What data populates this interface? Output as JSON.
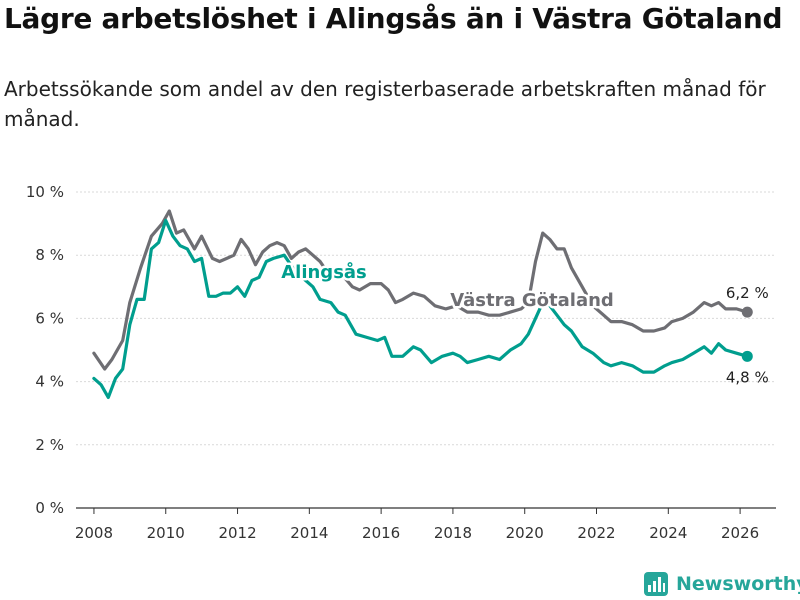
{
  "title": "Lägre arbetslöshet i Alingsås än i Västra Götaland",
  "subtitle": "Arbetssökande som andel av den registerbaserade arbetskraften månad för månad.",
  "brand": "Newsworthy",
  "chart_data": {
    "type": "line",
    "x_range": [
      2007.5,
      2027.0
    ],
    "ylim": [
      0,
      10
    ],
    "y_ticks": [
      0,
      2,
      4,
      6,
      8,
      10
    ],
    "y_tick_labels": [
      "0 %",
      "2 %",
      "4 %",
      "6 %",
      "8 %",
      "10 %"
    ],
    "x_ticks": [
      2008,
      2010,
      2012,
      2014,
      2016,
      2018,
      2020,
      2022,
      2024,
      2026
    ],
    "x_tick_labels": [
      "2008",
      "2010",
      "2012",
      "2014",
      "2016",
      "2018",
      "2020",
      "2022",
      "2024",
      "2026"
    ],
    "grid": "horizontal",
    "series": [
      {
        "name": "Västra Götaland",
        "color": "#6e6e73",
        "label_text": "Västra Götaland",
        "end_label": "6,2 %",
        "end_value": 6.2,
        "end_x": 2026.2,
        "points": [
          [
            2008.0,
            4.9
          ],
          [
            2008.3,
            4.4
          ],
          [
            2008.5,
            4.7
          ],
          [
            2008.8,
            5.3
          ],
          [
            2009.0,
            6.5
          ],
          [
            2009.3,
            7.6
          ],
          [
            2009.6,
            8.6
          ],
          [
            2009.9,
            9.0
          ],
          [
            2010.1,
            9.4
          ],
          [
            2010.3,
            8.7
          ],
          [
            2010.5,
            8.8
          ],
          [
            2010.8,
            8.2
          ],
          [
            2011.0,
            8.6
          ],
          [
            2011.3,
            7.9
          ],
          [
            2011.5,
            7.8
          ],
          [
            2011.7,
            7.9
          ],
          [
            2011.9,
            8.0
          ],
          [
            2012.1,
            8.5
          ],
          [
            2012.3,
            8.2
          ],
          [
            2012.5,
            7.7
          ],
          [
            2012.7,
            8.1
          ],
          [
            2012.9,
            8.3
          ],
          [
            2013.1,
            8.4
          ],
          [
            2013.3,
            8.3
          ],
          [
            2013.5,
            7.9
          ],
          [
            2013.7,
            8.1
          ],
          [
            2013.9,
            8.2
          ],
          [
            2014.1,
            8.0
          ],
          [
            2014.3,
            7.8
          ],
          [
            2014.6,
            7.3
          ],
          [
            2014.9,
            7.4
          ],
          [
            2015.2,
            7.0
          ],
          [
            2015.4,
            6.9
          ],
          [
            2015.7,
            7.1
          ],
          [
            2016.0,
            7.1
          ],
          [
            2016.2,
            6.9
          ],
          [
            2016.4,
            6.5
          ],
          [
            2016.6,
            6.6
          ],
          [
            2016.9,
            6.8
          ],
          [
            2017.2,
            6.7
          ],
          [
            2017.5,
            6.4
          ],
          [
            2017.8,
            6.3
          ],
          [
            2018.1,
            6.4
          ],
          [
            2018.4,
            6.2
          ],
          [
            2018.7,
            6.2
          ],
          [
            2019.0,
            6.1
          ],
          [
            2019.3,
            6.1
          ],
          [
            2019.6,
            6.2
          ],
          [
            2019.9,
            6.3
          ],
          [
            2020.1,
            6.5
          ],
          [
            2020.3,
            7.8
          ],
          [
            2020.5,
            8.7
          ],
          [
            2020.7,
            8.5
          ],
          [
            2020.9,
            8.2
          ],
          [
            2021.1,
            8.2
          ],
          [
            2021.3,
            7.6
          ],
          [
            2021.6,
            7.0
          ],
          [
            2021.9,
            6.4
          ],
          [
            2022.2,
            6.1
          ],
          [
            2022.4,
            5.9
          ],
          [
            2022.7,
            5.9
          ],
          [
            2023.0,
            5.8
          ],
          [
            2023.3,
            5.6
          ],
          [
            2023.6,
            5.6
          ],
          [
            2023.9,
            5.7
          ],
          [
            2024.1,
            5.9
          ],
          [
            2024.4,
            6.0
          ],
          [
            2024.7,
            6.2
          ],
          [
            2025.0,
            6.5
          ],
          [
            2025.2,
            6.4
          ],
          [
            2025.4,
            6.5
          ],
          [
            2025.6,
            6.3
          ],
          [
            2025.9,
            6.3
          ],
          [
            2026.2,
            6.2
          ]
        ]
      },
      {
        "name": "Alingsås",
        "color": "#009e8e",
        "label_text": "Alingsås",
        "end_label": "4,8 %",
        "end_value": 4.8,
        "end_x": 2026.2,
        "points": [
          [
            2008.0,
            4.1
          ],
          [
            2008.2,
            3.9
          ],
          [
            2008.4,
            3.5
          ],
          [
            2008.6,
            4.1
          ],
          [
            2008.8,
            4.4
          ],
          [
            2009.0,
            5.8
          ],
          [
            2009.2,
            6.6
          ],
          [
            2009.4,
            6.6
          ],
          [
            2009.6,
            8.2
          ],
          [
            2009.8,
            8.4
          ],
          [
            2010.0,
            9.1
          ],
          [
            2010.2,
            8.6
          ],
          [
            2010.4,
            8.3
          ],
          [
            2010.6,
            8.2
          ],
          [
            2010.8,
            7.8
          ],
          [
            2011.0,
            7.9
          ],
          [
            2011.2,
            6.7
          ],
          [
            2011.4,
            6.7
          ],
          [
            2011.6,
            6.8
          ],
          [
            2011.8,
            6.8
          ],
          [
            2012.0,
            7.0
          ],
          [
            2012.2,
            6.7
          ],
          [
            2012.4,
            7.2
          ],
          [
            2012.6,
            7.3
          ],
          [
            2012.8,
            7.8
          ],
          [
            2013.0,
            7.9
          ],
          [
            2013.3,
            8.0
          ],
          [
            2013.6,
            7.5
          ],
          [
            2013.9,
            7.2
          ],
          [
            2014.1,
            7.0
          ],
          [
            2014.3,
            6.6
          ],
          [
            2014.6,
            6.5
          ],
          [
            2014.8,
            6.2
          ],
          [
            2015.0,
            6.1
          ],
          [
            2015.3,
            5.5
          ],
          [
            2015.6,
            5.4
          ],
          [
            2015.9,
            5.3
          ],
          [
            2016.1,
            5.4
          ],
          [
            2016.3,
            4.8
          ],
          [
            2016.6,
            4.8
          ],
          [
            2016.9,
            5.1
          ],
          [
            2017.1,
            5.0
          ],
          [
            2017.4,
            4.6
          ],
          [
            2017.7,
            4.8
          ],
          [
            2018.0,
            4.9
          ],
          [
            2018.2,
            4.8
          ],
          [
            2018.4,
            4.6
          ],
          [
            2018.7,
            4.7
          ],
          [
            2019.0,
            4.8
          ],
          [
            2019.3,
            4.7
          ],
          [
            2019.6,
            5.0
          ],
          [
            2019.9,
            5.2
          ],
          [
            2020.1,
            5.5
          ],
          [
            2020.3,
            6.0
          ],
          [
            2020.5,
            6.5
          ],
          [
            2020.7,
            6.4
          ],
          [
            2020.9,
            6.1
          ],
          [
            2021.1,
            5.8
          ],
          [
            2021.3,
            5.6
          ],
          [
            2021.6,
            5.1
          ],
          [
            2021.9,
            4.9
          ],
          [
            2022.2,
            4.6
          ],
          [
            2022.4,
            4.5
          ],
          [
            2022.7,
            4.6
          ],
          [
            2023.0,
            4.5
          ],
          [
            2023.3,
            4.3
          ],
          [
            2023.6,
            4.3
          ],
          [
            2023.9,
            4.5
          ],
          [
            2024.1,
            4.6
          ],
          [
            2024.4,
            4.7
          ],
          [
            2024.7,
            4.9
          ],
          [
            2025.0,
            5.1
          ],
          [
            2025.2,
            4.9
          ],
          [
            2025.4,
            5.2
          ],
          [
            2025.6,
            5.0
          ],
          [
            2025.9,
            4.9
          ],
          [
            2026.2,
            4.8
          ]
        ]
      }
    ]
  }
}
